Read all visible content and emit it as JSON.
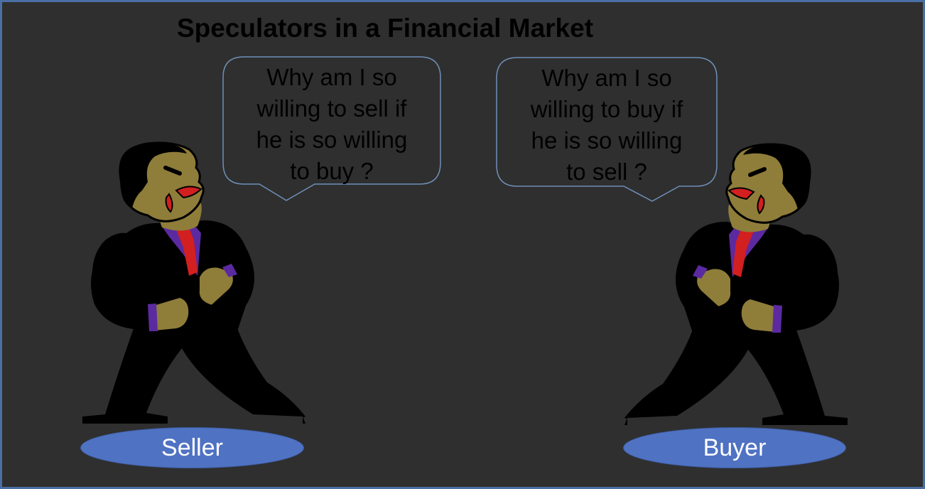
{
  "title": "Speculators in a Financial Market",
  "seller": {
    "label": "Seller",
    "thought_lines": [
      "Why am I so",
      "willing to sell if",
      "he is so willing",
      "to buy ?"
    ]
  },
  "buyer": {
    "label": "Buyer",
    "thought_lines": [
      "Why am I so",
      "willing to buy if",
      "he is so willing",
      "to sell ?"
    ]
  },
  "colors": {
    "background": "#2f2f2f",
    "border": "#4a6fa5",
    "oval": "#4f72c3",
    "suit": "#000000",
    "skin": "#8f7d3a",
    "tie": "#d21f1f",
    "shirt": "#5b2aa0"
  }
}
